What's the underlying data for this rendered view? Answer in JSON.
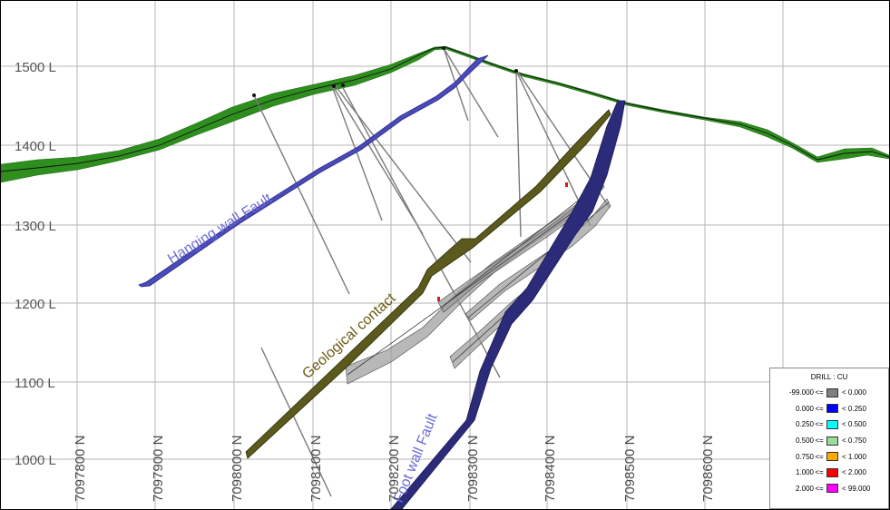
{
  "elevation_labels": [
    "1500 L",
    "1400 L",
    "1300 L",
    "1200 L",
    "1100 L",
    "1000 L"
  ],
  "northing_labels": [
    "7097800 N",
    "7097900 N",
    "7098000 N",
    "7098100 N",
    "7098200 N",
    "7098300 N",
    "7098400 N",
    "7098500 N",
    "7098600 N"
  ],
  "annotations": {
    "hanging_wall_fault": "Hanging wall Fault",
    "geological_contact": "Geological contact",
    "foot_wall_fault": "Foot wall Fault"
  },
  "colors": {
    "topography": "#2e8f1e",
    "fault": "#3a3aa8",
    "fault_label": "#6b6bd6",
    "contact": "#5b5a1c",
    "contact_label": "#6b5a10",
    "drillhole": "#7a7a7a",
    "grid": "#b5b5b5"
  },
  "legend": {
    "title": "DRILL : CU",
    "op": "<=",
    "items": [
      {
        "low": "-99.000",
        "high": "< 0.000",
        "color": "#808080"
      },
      {
        "low": "0.000",
        "high": "< 0.250",
        "color": "#0000ff"
      },
      {
        "low": "0.250",
        "high": "< 0.500",
        "color": "#00ffff"
      },
      {
        "low": "0.500",
        "high": "< 0.750",
        "color": "#99dd99"
      },
      {
        "low": "0.750",
        "high": "< 1.000",
        "color": "#ffaa00"
      },
      {
        "low": "1.000",
        "high": "< 2.000",
        "color": "#ff0000"
      },
      {
        "low": "2.000",
        "high": "< 99.000",
        "color": "#ff00ff"
      }
    ]
  }
}
